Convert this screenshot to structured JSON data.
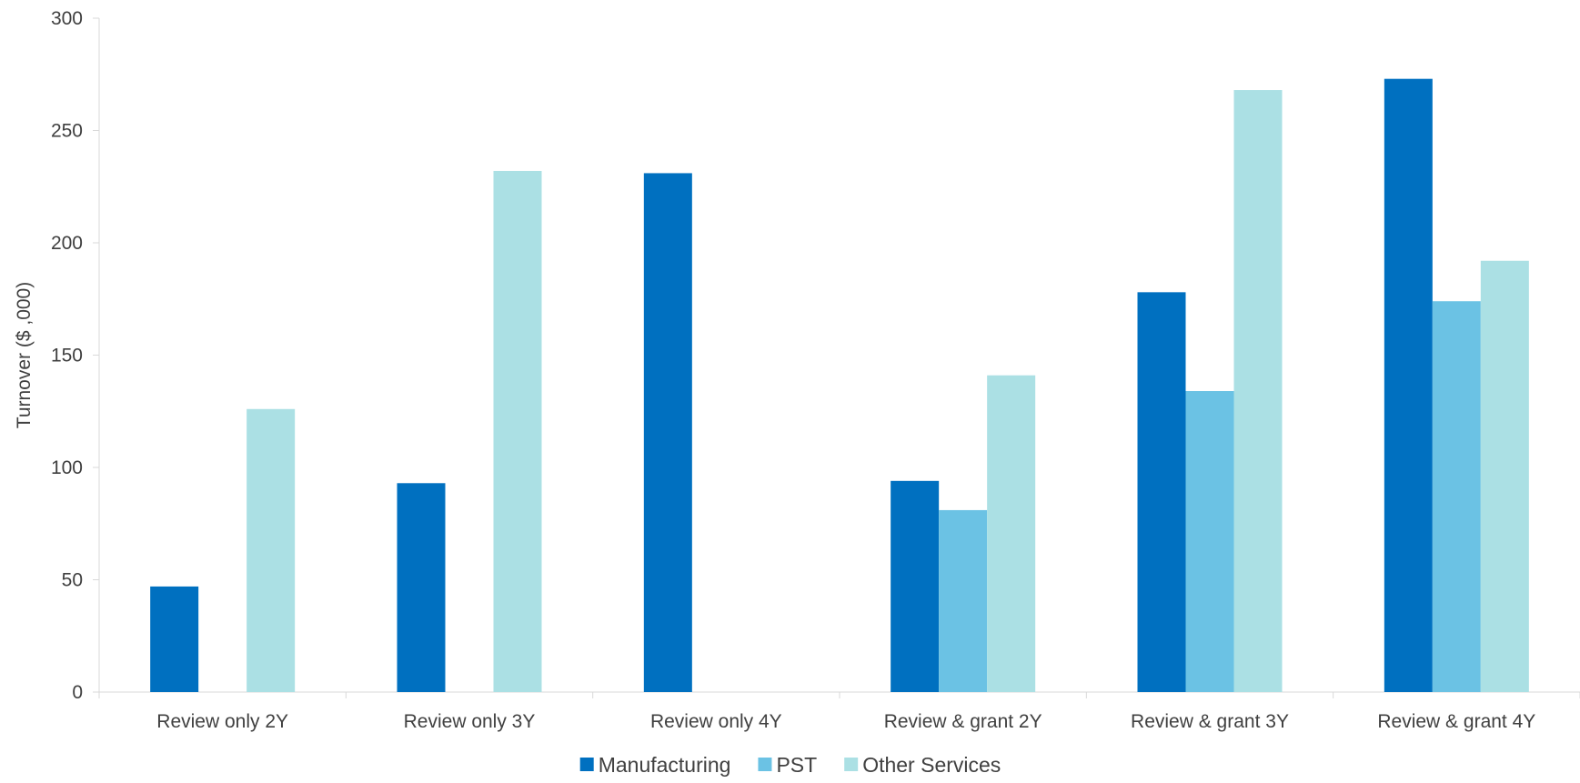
{
  "chart_data": {
    "type": "bar",
    "title": "",
    "xlabel": "",
    "ylabel": "Turnover ($ ,000)",
    "ylim": [
      0,
      300
    ],
    "yticks": [
      0,
      50,
      100,
      150,
      200,
      250,
      300
    ],
    "grid": false,
    "legend_position": "bottom-center",
    "categories": [
      "Review only 2Y",
      "Review only 3Y",
      "Review only 4Y",
      "Review & grant 2Y",
      "Review & grant 3Y",
      "Review & grant 4Y"
    ],
    "series": [
      {
        "name": "Manufacturing",
        "color": "#0070c0",
        "values": [
          47,
          93,
          231,
          94,
          178,
          273
        ]
      },
      {
        "name": "PST",
        "color": "#6bc2e4",
        "values": [
          null,
          null,
          null,
          81,
          134,
          174
        ]
      },
      {
        "name": "Other Services",
        "color": "#abe0e4",
        "values": [
          126,
          232,
          null,
          141,
          268,
          192
        ]
      }
    ]
  }
}
